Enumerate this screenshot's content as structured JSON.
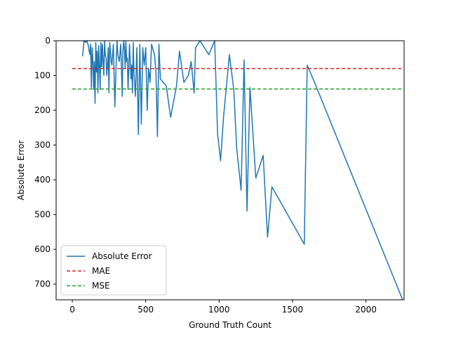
{
  "chart_data": {
    "type": "line",
    "xlabel": "Ground Truth Count",
    "ylabel": "Absolute Error",
    "xlim": [
      -110,
      2260
    ],
    "ylim": [
      0,
      745
    ],
    "y_inverted": true,
    "xticks": [
      0,
      500,
      1000,
      1500,
      2000
    ],
    "yticks": [
      0,
      100,
      200,
      300,
      400,
      500,
      600,
      700
    ],
    "grid": false,
    "legend_position": "lower left",
    "series": [
      {
        "name": "Absolute Error",
        "style": "solid",
        "color": "#1f77b4",
        "x": [
          70,
          80,
          90,
          100,
          110,
          115,
          120,
          125,
          130,
          135,
          140,
          145,
          150,
          155,
          160,
          165,
          170,
          175,
          180,
          185,
          190,
          195,
          200,
          205,
          210,
          215,
          220,
          225,
          230,
          235,
          240,
          245,
          250,
          255,
          260,
          265,
          270,
          280,
          290,
          300,
          305,
          310,
          320,
          330,
          340,
          345,
          350,
          355,
          360,
          365,
          370,
          375,
          380,
          385,
          390,
          400,
          405,
          410,
          415,
          420,
          430,
          440,
          450,
          460,
          470,
          480,
          490,
          500,
          510,
          520,
          530,
          540,
          560,
          570,
          580,
          590,
          600,
          610,
          640,
          670,
          710,
          730,
          760,
          790,
          810,
          830,
          840,
          870,
          930,
          970,
          990,
          1010,
          1030,
          1070,
          1100,
          1120,
          1150,
          1170,
          1190,
          1210,
          1250,
          1300,
          1330,
          1360,
          1580,
          1600,
          1660,
          2250
        ],
        "y": [
          45,
          0,
          5,
          0,
          15,
          30,
          40,
          10,
          135,
          20,
          50,
          140,
          60,
          180,
          5,
          90,
          30,
          150,
          15,
          70,
          140,
          5,
          75,
          10,
          60,
          100,
          0,
          40,
          50,
          100,
          70,
          20,
          150,
          5,
          30,
          60,
          70,
          10,
          190,
          50,
          0,
          40,
          60,
          10,
          160,
          30,
          0,
          20,
          80,
          0,
          60,
          50,
          140,
          80,
          10,
          110,
          70,
          150,
          5,
          90,
          160,
          20,
          270,
          10,
          240,
          20,
          70,
          20,
          200,
          80,
          120,
          10,
          40,
          90,
          275,
          10,
          110,
          115,
          130,
          220,
          130,
          30,
          120,
          100,
          60,
          150,
          20,
          0,
          40,
          0,
          270,
          345,
          220,
          40,
          140,
          310,
          430,
          55,
          490,
          135,
          395,
          330,
          565,
          420,
          585,
          70,
          130,
          745
        ]
      },
      {
        "name": "MAE",
        "style": "dashed",
        "color": "#d62728",
        "x": [
          0,
          2250
        ],
        "y": [
          80,
          80
        ]
      },
      {
        "name": "MSE",
        "style": "dashed",
        "color": "#2ca02c",
        "x": [
          0,
          2250
        ],
        "y": [
          139,
          139
        ]
      }
    ]
  }
}
